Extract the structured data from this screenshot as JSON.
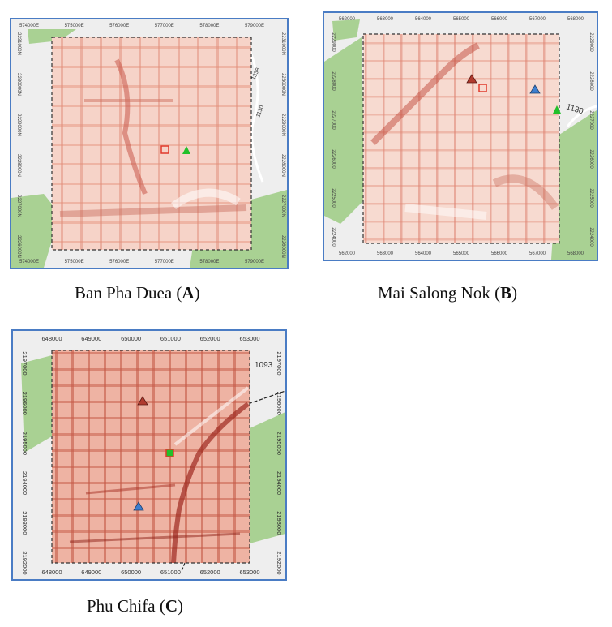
{
  "figure": {
    "panels": [
      {
        "id": "A",
        "caption_name": "Ban Pha Duea",
        "caption_letter": "A",
        "road_label": "1338",
        "road_label_2": "1130",
        "x_ticks": [
          "574000E",
          "575000E",
          "576000E",
          "577000E",
          "578000E",
          "579000E"
        ],
        "y_ticks": [
          "2231000N",
          "2230000N",
          "2229000N",
          "2228000N",
          "2227000N",
          "2226000N"
        ],
        "markers": [
          "red-square",
          "green-triangle"
        ]
      },
      {
        "id": "B",
        "caption_name": "Mai Salong Nok",
        "caption_letter": "B",
        "road_label": "1130",
        "x_ticks": [
          "562000",
          "563000",
          "564000",
          "565000",
          "566000",
          "567000",
          "568000"
        ],
        "y_ticks": [
          "2229000",
          "2228000",
          "2227000",
          "2226000",
          "2225000",
          "2224000"
        ],
        "markers": [
          "red-triangle",
          "red-square",
          "blue-triangle",
          "green-triangle"
        ]
      },
      {
        "id": "C",
        "caption_name": "Phu Chifa",
        "caption_letter": "C",
        "road_label": "1093",
        "x_ticks": [
          "648000",
          "649000",
          "650000",
          "651000",
          "652000",
          "653000"
        ],
        "y_ticks": [
          "2197000",
          "2196000",
          "2195000",
          "2194000",
          "2193000",
          "2192000"
        ],
        "markers": [
          "red-triangle",
          "green-square",
          "blue-triangle"
        ]
      }
    ]
  },
  "colors": {
    "frame": "#4a7cc4",
    "heat_base": "#f7d2c7",
    "heat_dark": "#b5352a",
    "forest": "#a9d193",
    "red_marker": "#c0392b",
    "green_marker": "#22c02a",
    "blue_marker": "#3d7fd0"
  }
}
